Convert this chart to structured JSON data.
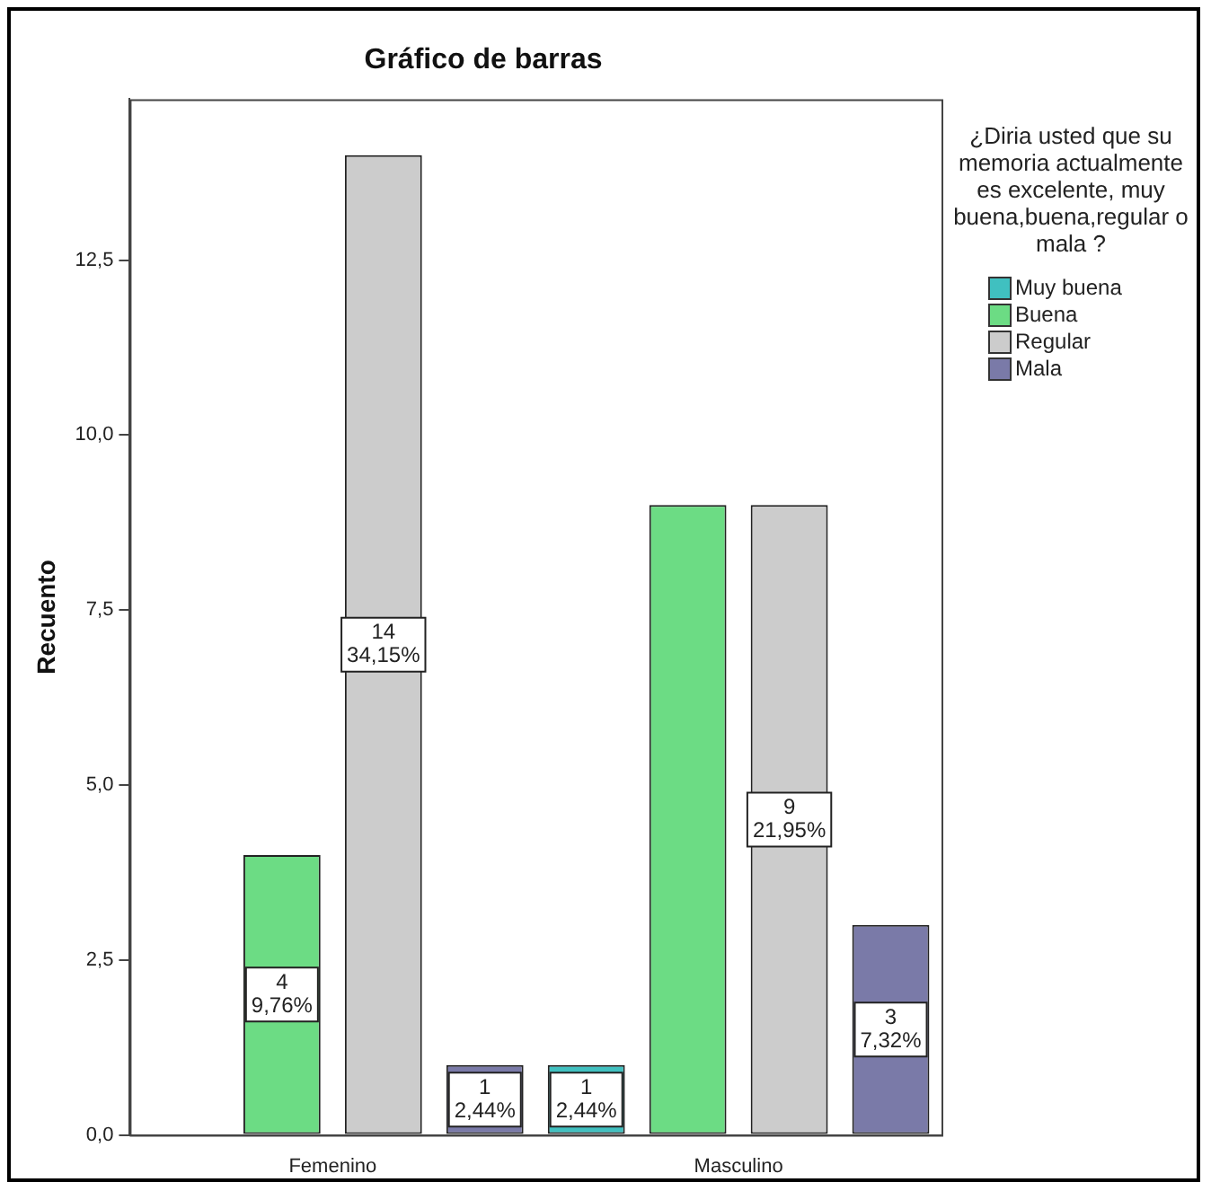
{
  "chart_data": {
    "type": "bar",
    "title": "Gráfico de barras",
    "ylabel": "Recuento",
    "legend_title": "¿Diria usted que su memoria actualmente es excelente, muy buena,buena,regular o mala ?",
    "legend": "right",
    "grid": false,
    "categories": [
      "Femenino",
      "Masculino"
    ],
    "ylim": [
      0,
      14.8
    ],
    "yticks": [
      {
        "value": 0,
        "label": "0,0"
      },
      {
        "value": 2.5,
        "label": "2,5"
      },
      {
        "value": 5,
        "label": "5,0"
      },
      {
        "value": 7.5,
        "label": "7,5"
      },
      {
        "value": 10,
        "label": "10,0"
      },
      {
        "value": 12.5,
        "label": "12,5"
      }
    ],
    "series": [
      {
        "name": "Muy buena",
        "color": "#40c0c0",
        "values": [
          null,
          1
        ],
        "value_labels": [
          null,
          "1\n2,44%"
        ]
      },
      {
        "name": "Buena",
        "color": "#6cdc84",
        "values": [
          4,
          9
        ],
        "value_labels": [
          "4\n9,76%",
          null
        ]
      },
      {
        "name": "Regular",
        "color": "#cccccc",
        "values": [
          14,
          9
        ],
        "value_labels": [
          "14\n34,15%",
          "9\n21,95%"
        ]
      },
      {
        "name": "Mala",
        "color": "#7a7aa8",
        "values": [
          1,
          3
        ],
        "value_labels": [
          "1\n2,44%",
          "3\n7,32%"
        ]
      }
    ]
  }
}
